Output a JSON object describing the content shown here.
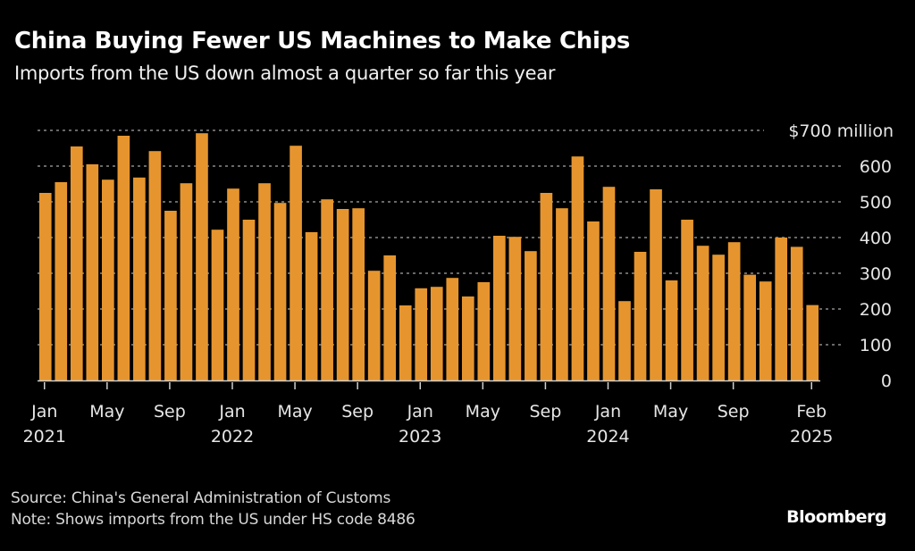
{
  "header": {
    "title": "China Buying Fewer US Machines to Make Chips",
    "subtitle": "Imports from the US down almost a quarter so far this year"
  },
  "footer": {
    "source": "Source: China's General Administration of Customs",
    "note": "Note: Shows imports from the US under HS code 8486",
    "brand": "Bloomberg"
  },
  "colors": {
    "bar": "#E6952E",
    "background": "#000000",
    "grid": "#8a8a8a",
    "text": "#e6e6e6"
  },
  "chart_data": {
    "type": "bar",
    "title": "China Buying Fewer US Machines to Make Chips",
    "subtitle": "Imports from the US down almost a quarter so far this year",
    "xlabel": "",
    "ylabel": "$ million",
    "ylim": [
      0,
      700
    ],
    "grid": true,
    "y_axis_side": "right",
    "y_ticks": [
      0,
      100,
      200,
      300,
      400,
      500,
      600,
      700
    ],
    "y_tick_labels": [
      "0",
      "100",
      "200",
      "300",
      "400",
      "500",
      "600",
      "$700 million"
    ],
    "x_ticks": [
      {
        "index": 0,
        "line1": "Jan",
        "line2": "2021"
      },
      {
        "index": 4,
        "line1": "May",
        "line2": ""
      },
      {
        "index": 8,
        "line1": "Sep",
        "line2": ""
      },
      {
        "index": 12,
        "line1": "Jan",
        "line2": "2022"
      },
      {
        "index": 16,
        "line1": "May",
        "line2": ""
      },
      {
        "index": 20,
        "line1": "Sep",
        "line2": ""
      },
      {
        "index": 24,
        "line1": "Jan",
        "line2": "2023"
      },
      {
        "index": 28,
        "line1": "May",
        "line2": ""
      },
      {
        "index": 32,
        "line1": "Sep",
        "line2": ""
      },
      {
        "index": 36,
        "line1": "Jan",
        "line2": "2024"
      },
      {
        "index": 40,
        "line1": "May",
        "line2": ""
      },
      {
        "index": 44,
        "line1": "Sep",
        "line2": ""
      },
      {
        "index": 49,
        "line1": "Feb",
        "line2": "2025"
      }
    ],
    "categories": [
      "2021-01",
      "2021-02",
      "2021-03",
      "2021-04",
      "2021-05",
      "2021-06",
      "2021-07",
      "2021-08",
      "2021-09",
      "2021-10",
      "2021-11",
      "2021-12",
      "2022-01",
      "2022-02",
      "2022-03",
      "2022-04",
      "2022-05",
      "2022-06",
      "2022-07",
      "2022-08",
      "2022-09",
      "2022-10",
      "2022-11",
      "2022-12",
      "2023-01",
      "2023-02",
      "2023-03",
      "2023-04",
      "2023-05",
      "2023-06",
      "2023-07",
      "2023-08",
      "2023-09",
      "2023-10",
      "2023-11",
      "2023-12",
      "2024-01",
      "2024-02",
      "2024-03",
      "2024-04",
      "2024-05",
      "2024-06",
      "2024-07",
      "2024-08",
      "2024-09",
      "2024-10",
      "2024-11",
      "2024-12",
      "2025-01",
      "2025-02"
    ],
    "values": [
      525,
      555,
      655,
      605,
      562,
      685,
      568,
      642,
      475,
      552,
      692,
      422,
      537,
      450,
      552,
      497,
      657,
      415,
      507,
      480,
      482,
      307,
      350,
      210,
      258,
      262,
      287,
      235,
      275,
      405,
      402,
      362,
      525,
      482,
      627,
      445,
      542,
      222,
      360,
      535,
      280,
      450,
      377,
      352,
      387,
      296,
      277,
      400,
      374,
      211
    ]
  }
}
